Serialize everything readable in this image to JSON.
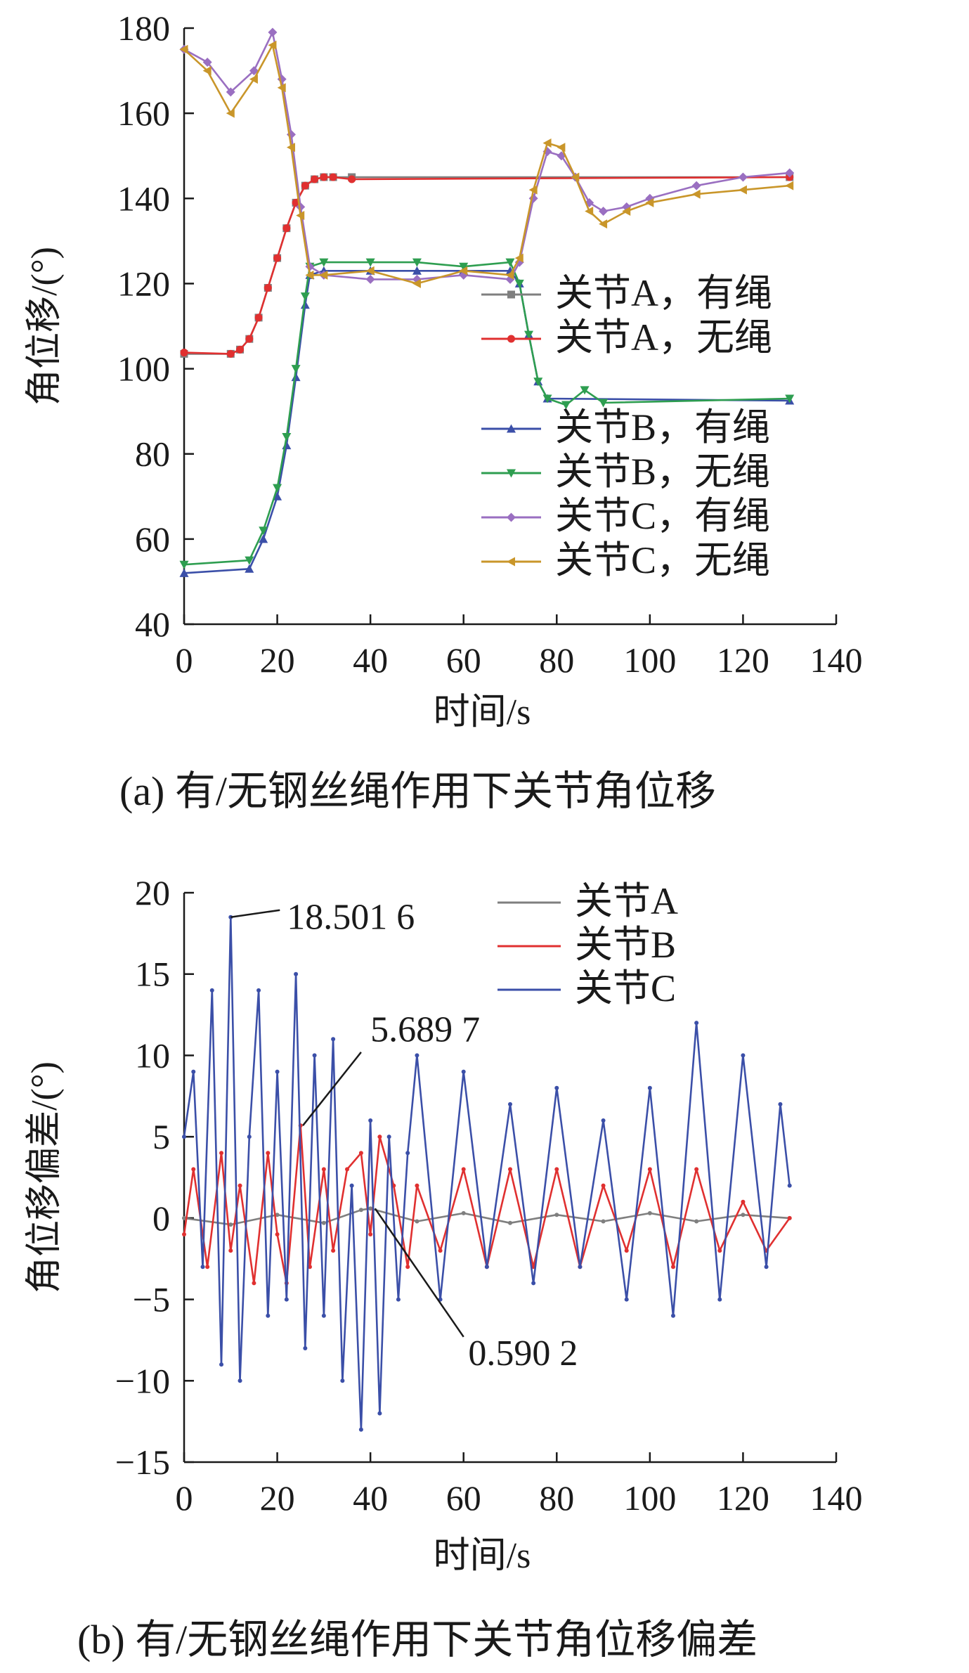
{
  "chart_data": [
    {
      "type": "line",
      "caption": "(a) 有/无钢丝绳作用下关节角位移",
      "xlabel": "时间/s",
      "ylabel": "角位移/(°)",
      "xlim": [
        0,
        140
      ],
      "ylim": [
        40,
        180
      ],
      "xticks": [
        0,
        20,
        40,
        60,
        80,
        100,
        120,
        140
      ],
      "yticks": [
        40,
        60,
        80,
        100,
        120,
        140,
        160,
        180
      ],
      "grid": false,
      "legend_position": "right-middle",
      "series": [
        {
          "name": "关节A，有绳",
          "color": "#7f7f7f",
          "marker": "square",
          "x": [
            0,
            10,
            12,
            14,
            16,
            18,
            20,
            22,
            24,
            26,
            28,
            30,
            32,
            36,
            130
          ],
          "y": [
            103.5,
            103.5,
            104.5,
            107,
            112,
            119,
            126,
            133,
            139,
            143,
            144.5,
            145,
            145,
            145,
            145
          ]
        },
        {
          "name": "关节A，无绳",
          "color": "#e03030",
          "marker": "circle",
          "x": [
            0,
            10,
            12,
            14,
            16,
            18,
            20,
            22,
            24,
            26,
            28,
            30,
            32,
            36,
            130
          ],
          "y": [
            103.8,
            103.5,
            104.5,
            107,
            112,
            119,
            126,
            133,
            139,
            143,
            144.5,
            145,
            145,
            144.5,
            145
          ]
        },
        {
          "name": "关节B，有绳",
          "color": "#3b4fa8",
          "marker": "triangle-up",
          "x": [
            0,
            14,
            17,
            20,
            22,
            24,
            26,
            27,
            30,
            40,
            50,
            60,
            70,
            72,
            74,
            76,
            78,
            130
          ],
          "y": [
            52,
            53,
            60,
            70,
            82,
            98,
            115,
            122,
            123,
            123,
            123,
            123,
            123,
            120,
            108,
            97,
            93,
            92.5
          ]
        },
        {
          "name": "关节B，无绳",
          "color": "#2e9e50",
          "marker": "triangle-down",
          "x": [
            0,
            14,
            17,
            20,
            22,
            24,
            26,
            27,
            30,
            40,
            50,
            60,
            70,
            72,
            74,
            76,
            78,
            82,
            86,
            90,
            130
          ],
          "y": [
            54,
            55,
            62,
            72,
            84,
            100,
            117,
            124,
            125,
            125,
            125,
            124,
            125,
            120,
            108,
            97,
            93,
            91.5,
            95,
            92,
            93
          ]
        },
        {
          "name": "关节C，有绳",
          "color": "#9a6fc1",
          "marker": "diamond",
          "x": [
            0,
            5,
            10,
            15,
            19,
            21,
            23,
            25,
            27,
            30,
            40,
            50,
            60,
            70,
            72,
            75,
            78,
            81,
            84,
            87,
            90,
            95,
            100,
            110,
            120,
            130
          ],
          "y": [
            175,
            172,
            165,
            170,
            179,
            168,
            155,
            138,
            124,
            122,
            121,
            121,
            122,
            121,
            125,
            140,
            151,
            150,
            145,
            139,
            137,
            138,
            140,
            143,
            145,
            146
          ]
        },
        {
          "name": "关节C，无绳",
          "color": "#c9962a",
          "marker": "triangle-left",
          "x": [
            0,
            5,
            10,
            15,
            19,
            21,
            23,
            25,
            27,
            30,
            40,
            50,
            60,
            70,
            72,
            75,
            78,
            81,
            84,
            87,
            90,
            95,
            100,
            110,
            120,
            130
          ],
          "y": [
            175,
            170,
            160,
            168,
            176,
            166,
            152,
            136,
            122,
            122,
            123,
            120,
            123,
            122,
            126,
            142,
            153,
            152,
            145,
            137,
            134,
            137,
            139,
            141,
            142,
            143
          ]
        }
      ]
    },
    {
      "type": "line",
      "caption": "(b) 有/无钢丝绳作用下关节角位移偏差",
      "xlabel": "时间/s",
      "ylabel": "角位移偏差/(°)",
      "xlim": [
        0,
        140
      ],
      "ylim": [
        -15,
        20
      ],
      "xticks": [
        0,
        20,
        40,
        60,
        80,
        100,
        120,
        140
      ],
      "yticks": [
        -15,
        -10,
        -5,
        0,
        5,
        10,
        15,
        20
      ],
      "grid": false,
      "legend_position": "top-right",
      "annotations": [
        "18.501 6",
        "5.689 7",
        "0.590 2"
      ],
      "series": [
        {
          "name": "关节A",
          "color": "#7f7f7f",
          "x": [
            0,
            10,
            20,
            30,
            38,
            40,
            50,
            60,
            70,
            80,
            90,
            100,
            110,
            120,
            130
          ],
          "y": [
            0,
            -0.4,
            0.2,
            -0.3,
            0.5,
            0.59,
            -0.2,
            0.3,
            -0.3,
            0.2,
            -0.2,
            0.3,
            -0.2,
            0.2,
            0
          ]
        },
        {
          "name": "关节B",
          "color": "#e03030",
          "x": [
            0,
            2,
            5,
            8,
            10,
            12,
            15,
            18,
            20,
            22,
            25,
            27,
            30,
            32,
            35,
            38,
            40,
            42,
            45,
            48,
            50,
            55,
            60,
            65,
            70,
            75,
            80,
            85,
            90,
            95,
            100,
            105,
            110,
            115,
            120,
            125,
            130
          ],
          "y": [
            -1,
            3,
            -3,
            4,
            -2,
            2,
            -4,
            4,
            -1,
            -4,
            5.69,
            -3,
            3,
            -2,
            3,
            4,
            -1,
            5,
            2,
            -3,
            2,
            -2,
            3,
            -3,
            3,
            -3,
            3,
            -3,
            2,
            -2,
            3,
            -3,
            3,
            -2,
            1,
            -2,
            0
          ]
        },
        {
          "name": "关节C",
          "color": "#3b4fa8",
          "x": [
            0,
            2,
            4,
            6,
            8,
            10,
            12,
            14,
            16,
            18,
            20,
            22,
            24,
            26,
            28,
            30,
            32,
            34,
            36,
            38,
            40,
            42,
            44,
            46,
            48,
            50,
            55,
            60,
            65,
            70,
            75,
            80,
            85,
            90,
            95,
            100,
            105,
            110,
            115,
            120,
            125,
            128,
            130
          ],
          "y": [
            5,
            9,
            -3,
            14,
            -9,
            18.5,
            -10,
            5,
            14,
            -6,
            9,
            -5,
            15,
            -8,
            10,
            -6,
            11,
            -10,
            2,
            -13,
            6,
            -12,
            5,
            -5,
            4,
            10,
            -5,
            9,
            -3,
            7,
            -4,
            8,
            -3,
            6,
            -5,
            8,
            -6,
            12,
            -5,
            10,
            -3,
            7,
            2
          ]
        }
      ]
    }
  ]
}
